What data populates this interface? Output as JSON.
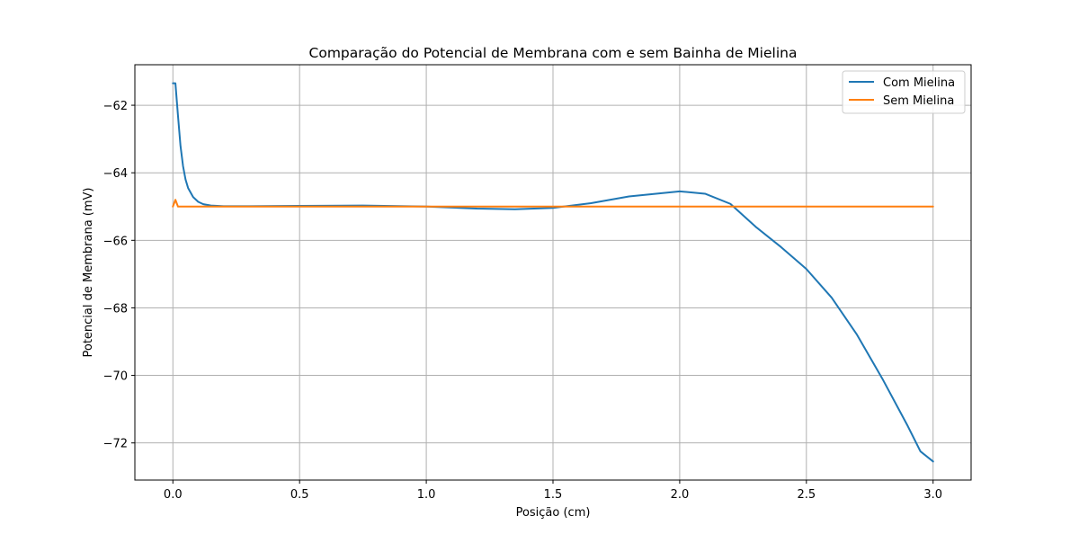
{
  "chart_data": {
    "type": "line",
    "title": "Comparação do Potencial de Membrana com e sem Bainha de Mielina",
    "xlabel": "Posição (cm)",
    "ylabel": "Potencial de Membrana (mV)",
    "xlim": [
      -0.15,
      3.15
    ],
    "ylim": [
      -73.1,
      -60.8
    ],
    "xticks": [
      0.0,
      0.5,
      1.0,
      1.5,
      2.0,
      2.5,
      3.0
    ],
    "xtick_labels": [
      "0.0",
      "0.5",
      "1.0",
      "1.5",
      "2.0",
      "2.5",
      "3.0"
    ],
    "yticks": [
      -62,
      -64,
      -66,
      -68,
      -70,
      -72
    ],
    "ytick_labels": [
      "−62",
      "−64",
      "−66",
      "−68",
      "−70",
      "−72"
    ],
    "grid": true,
    "legend_position": "top-right",
    "series": [
      {
        "name": "Com Mielina",
        "color": "#1f77b4",
        "x": [
          0.0,
          0.01,
          0.02,
          0.03,
          0.04,
          0.05,
          0.06,
          0.08,
          0.1,
          0.12,
          0.15,
          0.2,
          0.3,
          0.5,
          0.75,
          1.0,
          1.2,
          1.35,
          1.5,
          1.65,
          1.8,
          2.0,
          2.1,
          2.2,
          2.3,
          2.4,
          2.5,
          2.6,
          2.7,
          2.8,
          2.9,
          2.95,
          3.0
        ],
        "y": [
          -61.35,
          -61.35,
          -62.3,
          -63.2,
          -63.8,
          -64.2,
          -64.45,
          -64.72,
          -64.86,
          -64.93,
          -64.97,
          -64.99,
          -64.99,
          -64.98,
          -64.97,
          -65.0,
          -65.06,
          -65.08,
          -65.04,
          -64.9,
          -64.7,
          -64.55,
          -64.62,
          -64.92,
          -65.6,
          -66.2,
          -66.85,
          -67.7,
          -68.8,
          -70.1,
          -71.5,
          -72.25,
          -72.55
        ]
      },
      {
        "name": "Sem Mielina",
        "color": "#ff7f0e",
        "x": [
          0.0,
          0.01,
          0.02,
          0.03,
          0.05,
          0.1,
          0.5,
          1.0,
          1.5,
          2.0,
          2.5,
          3.0
        ],
        "y": [
          -65.0,
          -64.8,
          -65.0,
          -65.0,
          -65.0,
          -65.0,
          -65.0,
          -65.0,
          -65.0,
          -65.0,
          -65.0,
          -65.0
        ]
      }
    ]
  }
}
